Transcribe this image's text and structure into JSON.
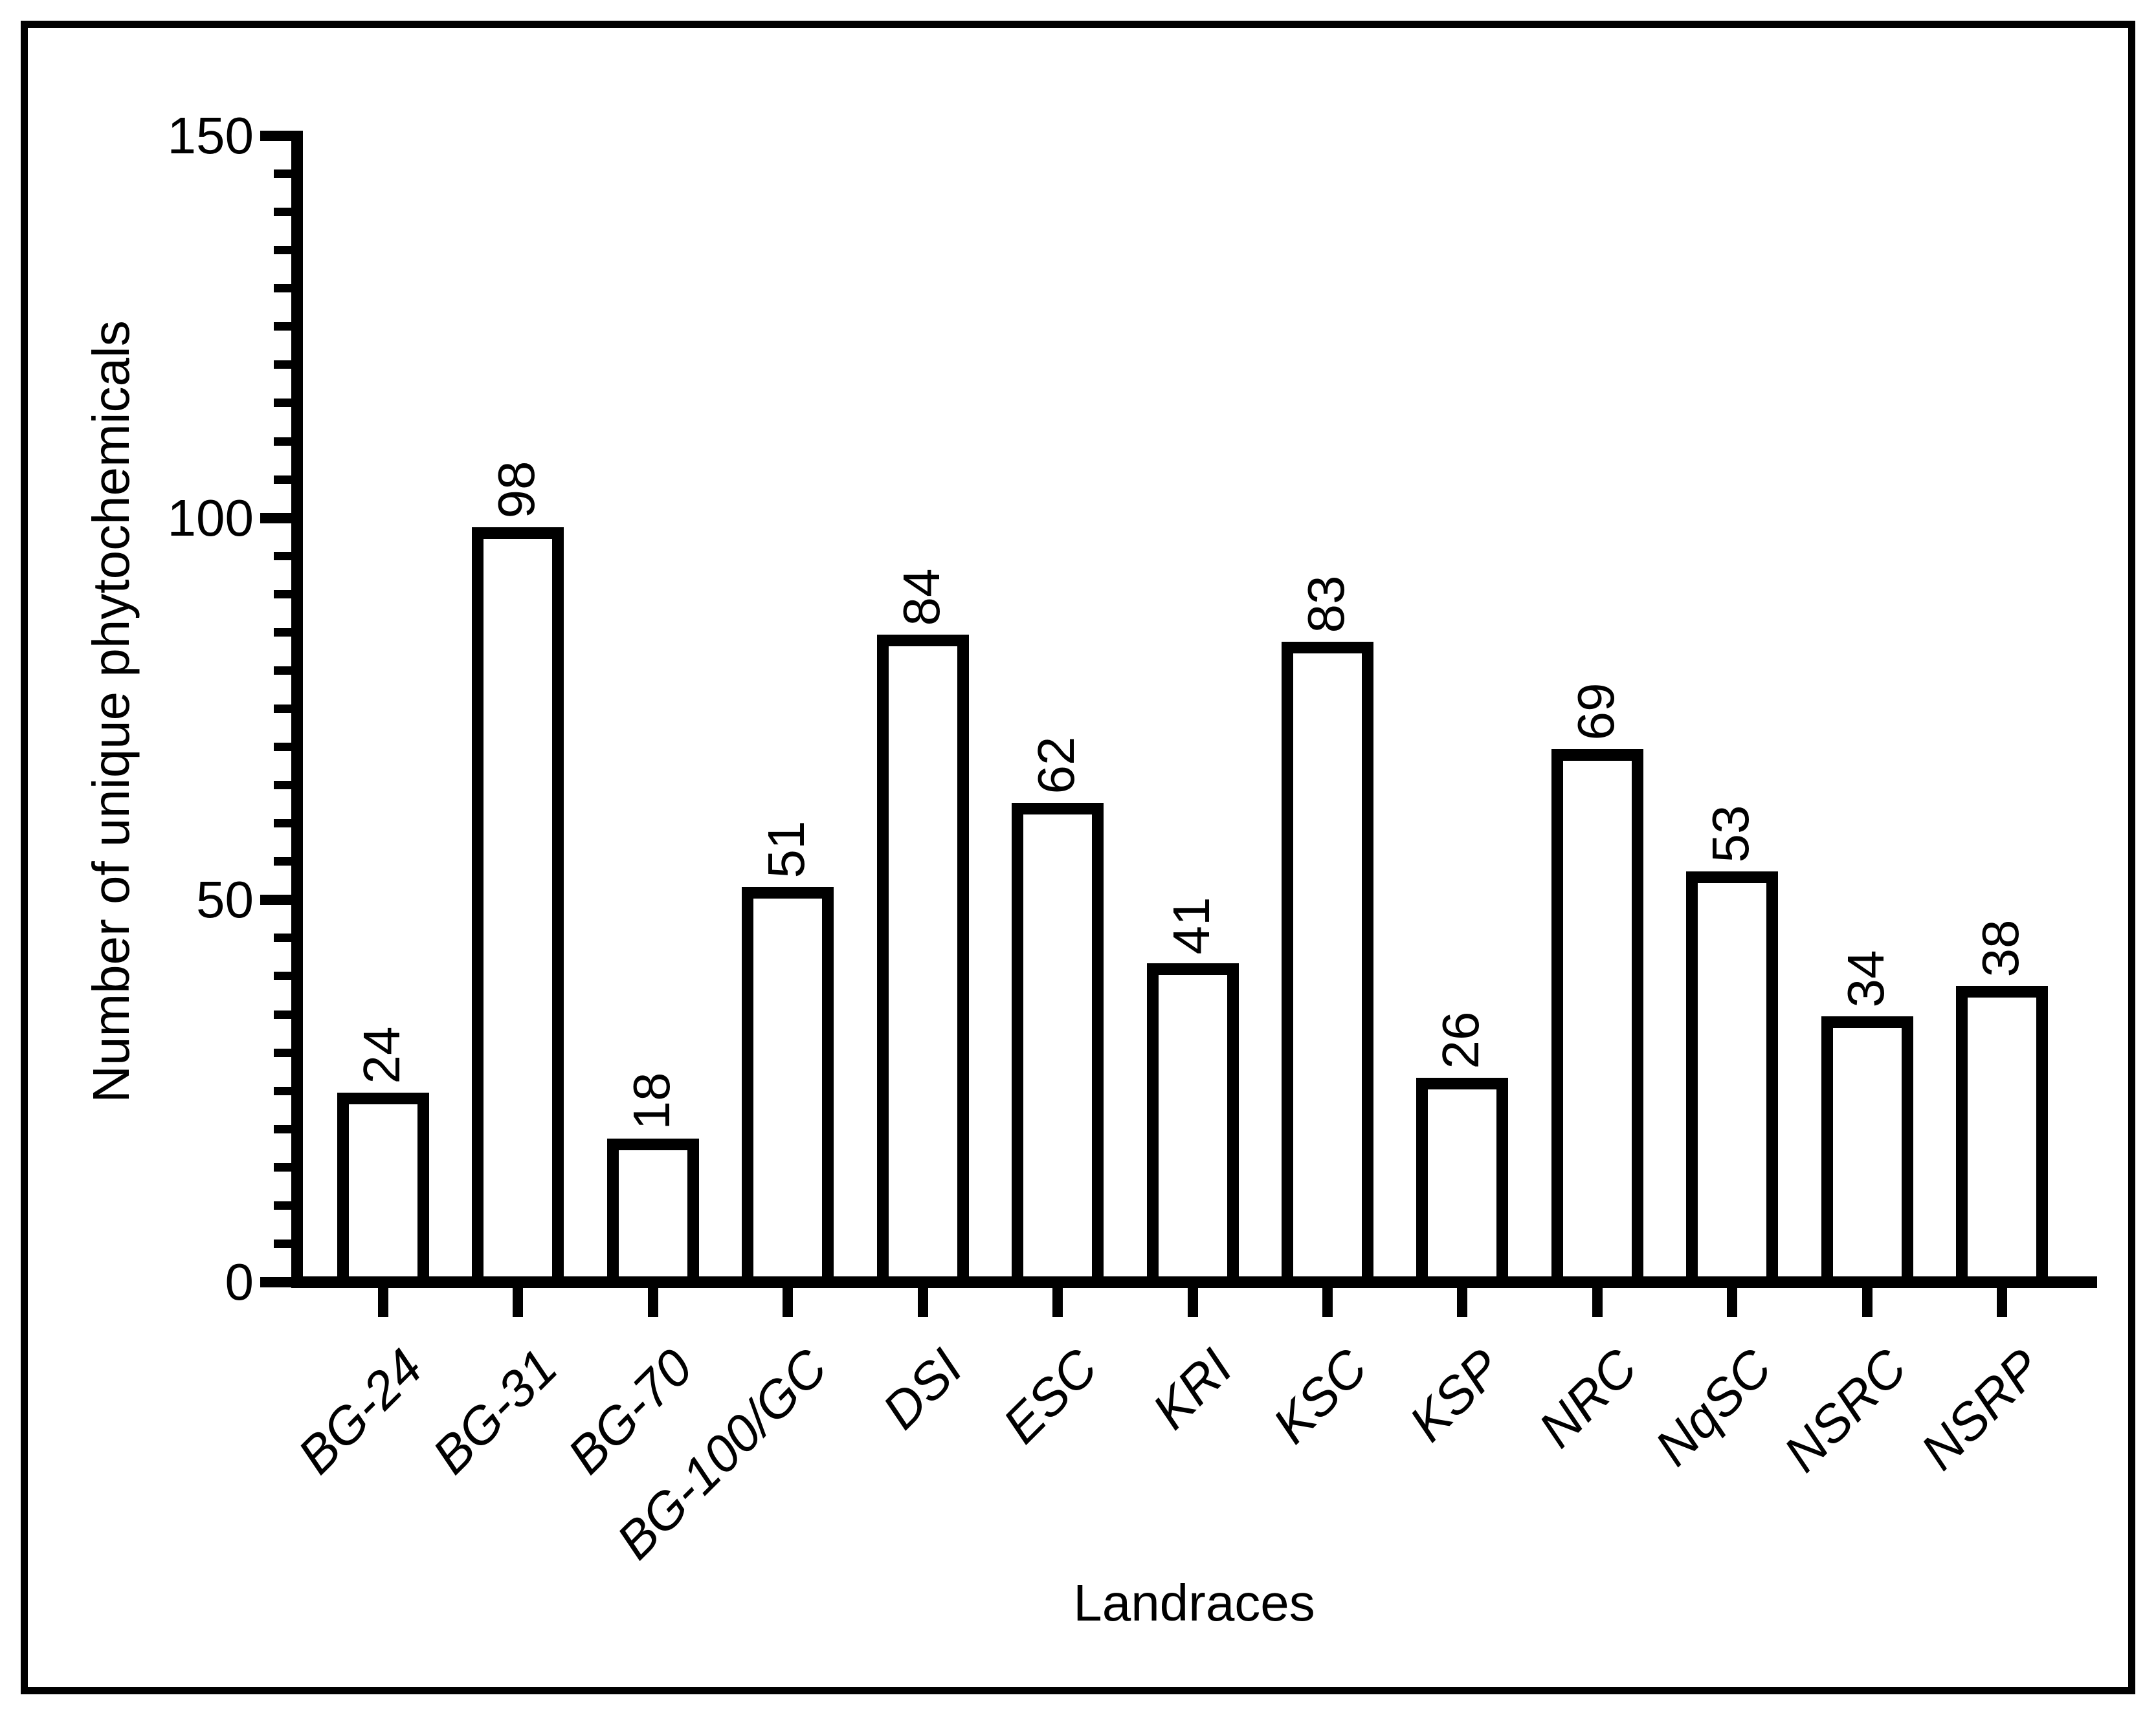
{
  "figure": {
    "background": "#ffffff",
    "frame_color": "#000000",
    "text_color": "#000000"
  },
  "chart_data": {
    "type": "bar",
    "title": "",
    "xlabel": "Landraces",
    "ylabel": "Number of unique phytochemicals",
    "categories": [
      "BG-24",
      "BG-31",
      "BG-70",
      "BG-100/GC",
      "DSI",
      "ESC",
      "KRI",
      "KSC",
      "KSP",
      "NRC",
      "NqSC",
      "NSRC",
      "NSRP"
    ],
    "values": [
      24,
      98,
      18,
      51,
      84,
      62,
      41,
      83,
      26,
      69,
      53,
      34,
      38
    ],
    "bar_value_labels": [
      "24",
      "98",
      "18",
      "51",
      "84",
      "62",
      "41",
      "83",
      "26",
      "69",
      "53",
      "34",
      "38"
    ],
    "ylim": [
      0,
      150
    ],
    "yticks_major": [
      0,
      50,
      100,
      150
    ],
    "ytick_labels": [
      "0",
      "50",
      "100",
      "150"
    ],
    "minor_tick_step": 5,
    "grid": false,
    "legend": null,
    "bar_fill": "#ffffff",
    "bar_stroke": "#000000"
  }
}
